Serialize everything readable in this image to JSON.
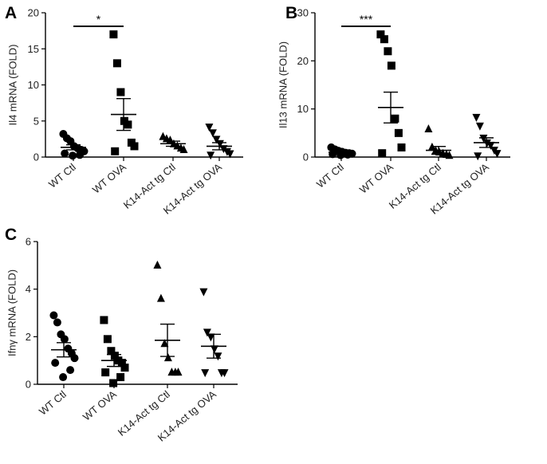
{
  "chart_data": [
    {
      "panel": "A",
      "type": "scatter",
      "ylabel": "Il4 mRNA (FOLD)",
      "ylim": [
        0,
        20
      ],
      "yticks": [
        0,
        5,
        10,
        15,
        20
      ],
      "categories": [
        "WT Ctl",
        "WT OVA",
        "K14-Act tg Ctl",
        "K14-Act tg OVA"
      ],
      "markers": [
        "circle",
        "square",
        "triangle-up",
        "triangle-down"
      ],
      "points": [
        [
          3.2,
          2.6,
          2.2,
          1.5,
          1.2,
          1.0,
          0.8,
          0.5,
          0.3,
          0.2
        ],
        [
          17.0,
          13.0,
          9.0,
          5.0,
          4.5,
          2.0,
          1.5,
          0.8
        ],
        [
          2.8,
          2.5,
          2.3,
          1.8,
          1.5,
          1.2,
          1.0
        ],
        [
          4.2,
          3.4,
          2.5,
          1.9,
          1.2,
          0.8,
          0.5,
          0.3
        ]
      ],
      "mean": [
        1.35,
        5.9,
        1.85,
        1.5
      ],
      "sem": [
        0.35,
        2.2,
        0.35,
        0.5
      ],
      "significance": [
        {
          "from": 0,
          "to": 1,
          "label": "*"
        }
      ]
    },
    {
      "panel": "B",
      "type": "scatter",
      "ylabel": "Il13 mRNA (FOLD)",
      "ylim": [
        0,
        30
      ],
      "yticks": [
        0,
        10,
        20,
        30
      ],
      "categories": [
        "WT Ctl",
        "WT OVA",
        "K14-Act tg Ctl",
        "K14-Act tg OVA"
      ],
      "markers": [
        "circle",
        "square",
        "triangle-up",
        "triangle-down"
      ],
      "points": [
        [
          2.0,
          1.6,
          1.3,
          1.1,
          0.9,
          0.8,
          0.7,
          0.6,
          0.5,
          0.4
        ],
        [
          25.5,
          24.5,
          22.0,
          19.0,
          8.0,
          5.0,
          2.0,
          0.8
        ],
        [
          5.8,
          2.0,
          1.3,
          1.0,
          0.7,
          0.5,
          0.3
        ],
        [
          8.3,
          6.5,
          4.0,
          3.0,
          2.5,
          1.5,
          0.8,
          0.3
        ]
      ],
      "mean": [
        1.0,
        10.3,
        1.4,
        3.0
      ],
      "sem": [
        0.2,
        3.2,
        0.8,
        1.0
      ],
      "significance": [
        {
          "from": 0,
          "to": 1,
          "label": "***"
        }
      ]
    },
    {
      "panel": "C",
      "type": "scatter",
      "ylabel": "Ifnγ mRNA (FOLD)",
      "ylim": [
        0,
        6
      ],
      "yticks": [
        0,
        2,
        4,
        6
      ],
      "categories": [
        "WT Ctl",
        "WT OVA",
        "K14-Act tg Ctl",
        "K14-Act tg  OVA"
      ],
      "markers": [
        "circle",
        "square",
        "triangle-up",
        "triangle-down"
      ],
      "points": [
        [
          2.9,
          2.6,
          2.1,
          1.9,
          1.5,
          1.3,
          1.1,
          0.9,
          0.6,
          0.3
        ],
        [
          2.7,
          1.9,
          1.4,
          1.2,
          1.0,
          0.9,
          0.7,
          0.5,
          0.3,
          0.05
        ],
        [
          5.0,
          3.6,
          1.7,
          1.1,
          0.5,
          0.5,
          0.5
        ],
        [
          3.9,
          2.2,
          2.0,
          1.5,
          1.2,
          0.5,
          0.5,
          0.5
        ]
      ],
      "mean": [
        1.45,
        1.0,
        1.85,
        1.6
      ],
      "sem": [
        0.3,
        0.25,
        0.68,
        0.5
      ],
      "significance": []
    }
  ]
}
